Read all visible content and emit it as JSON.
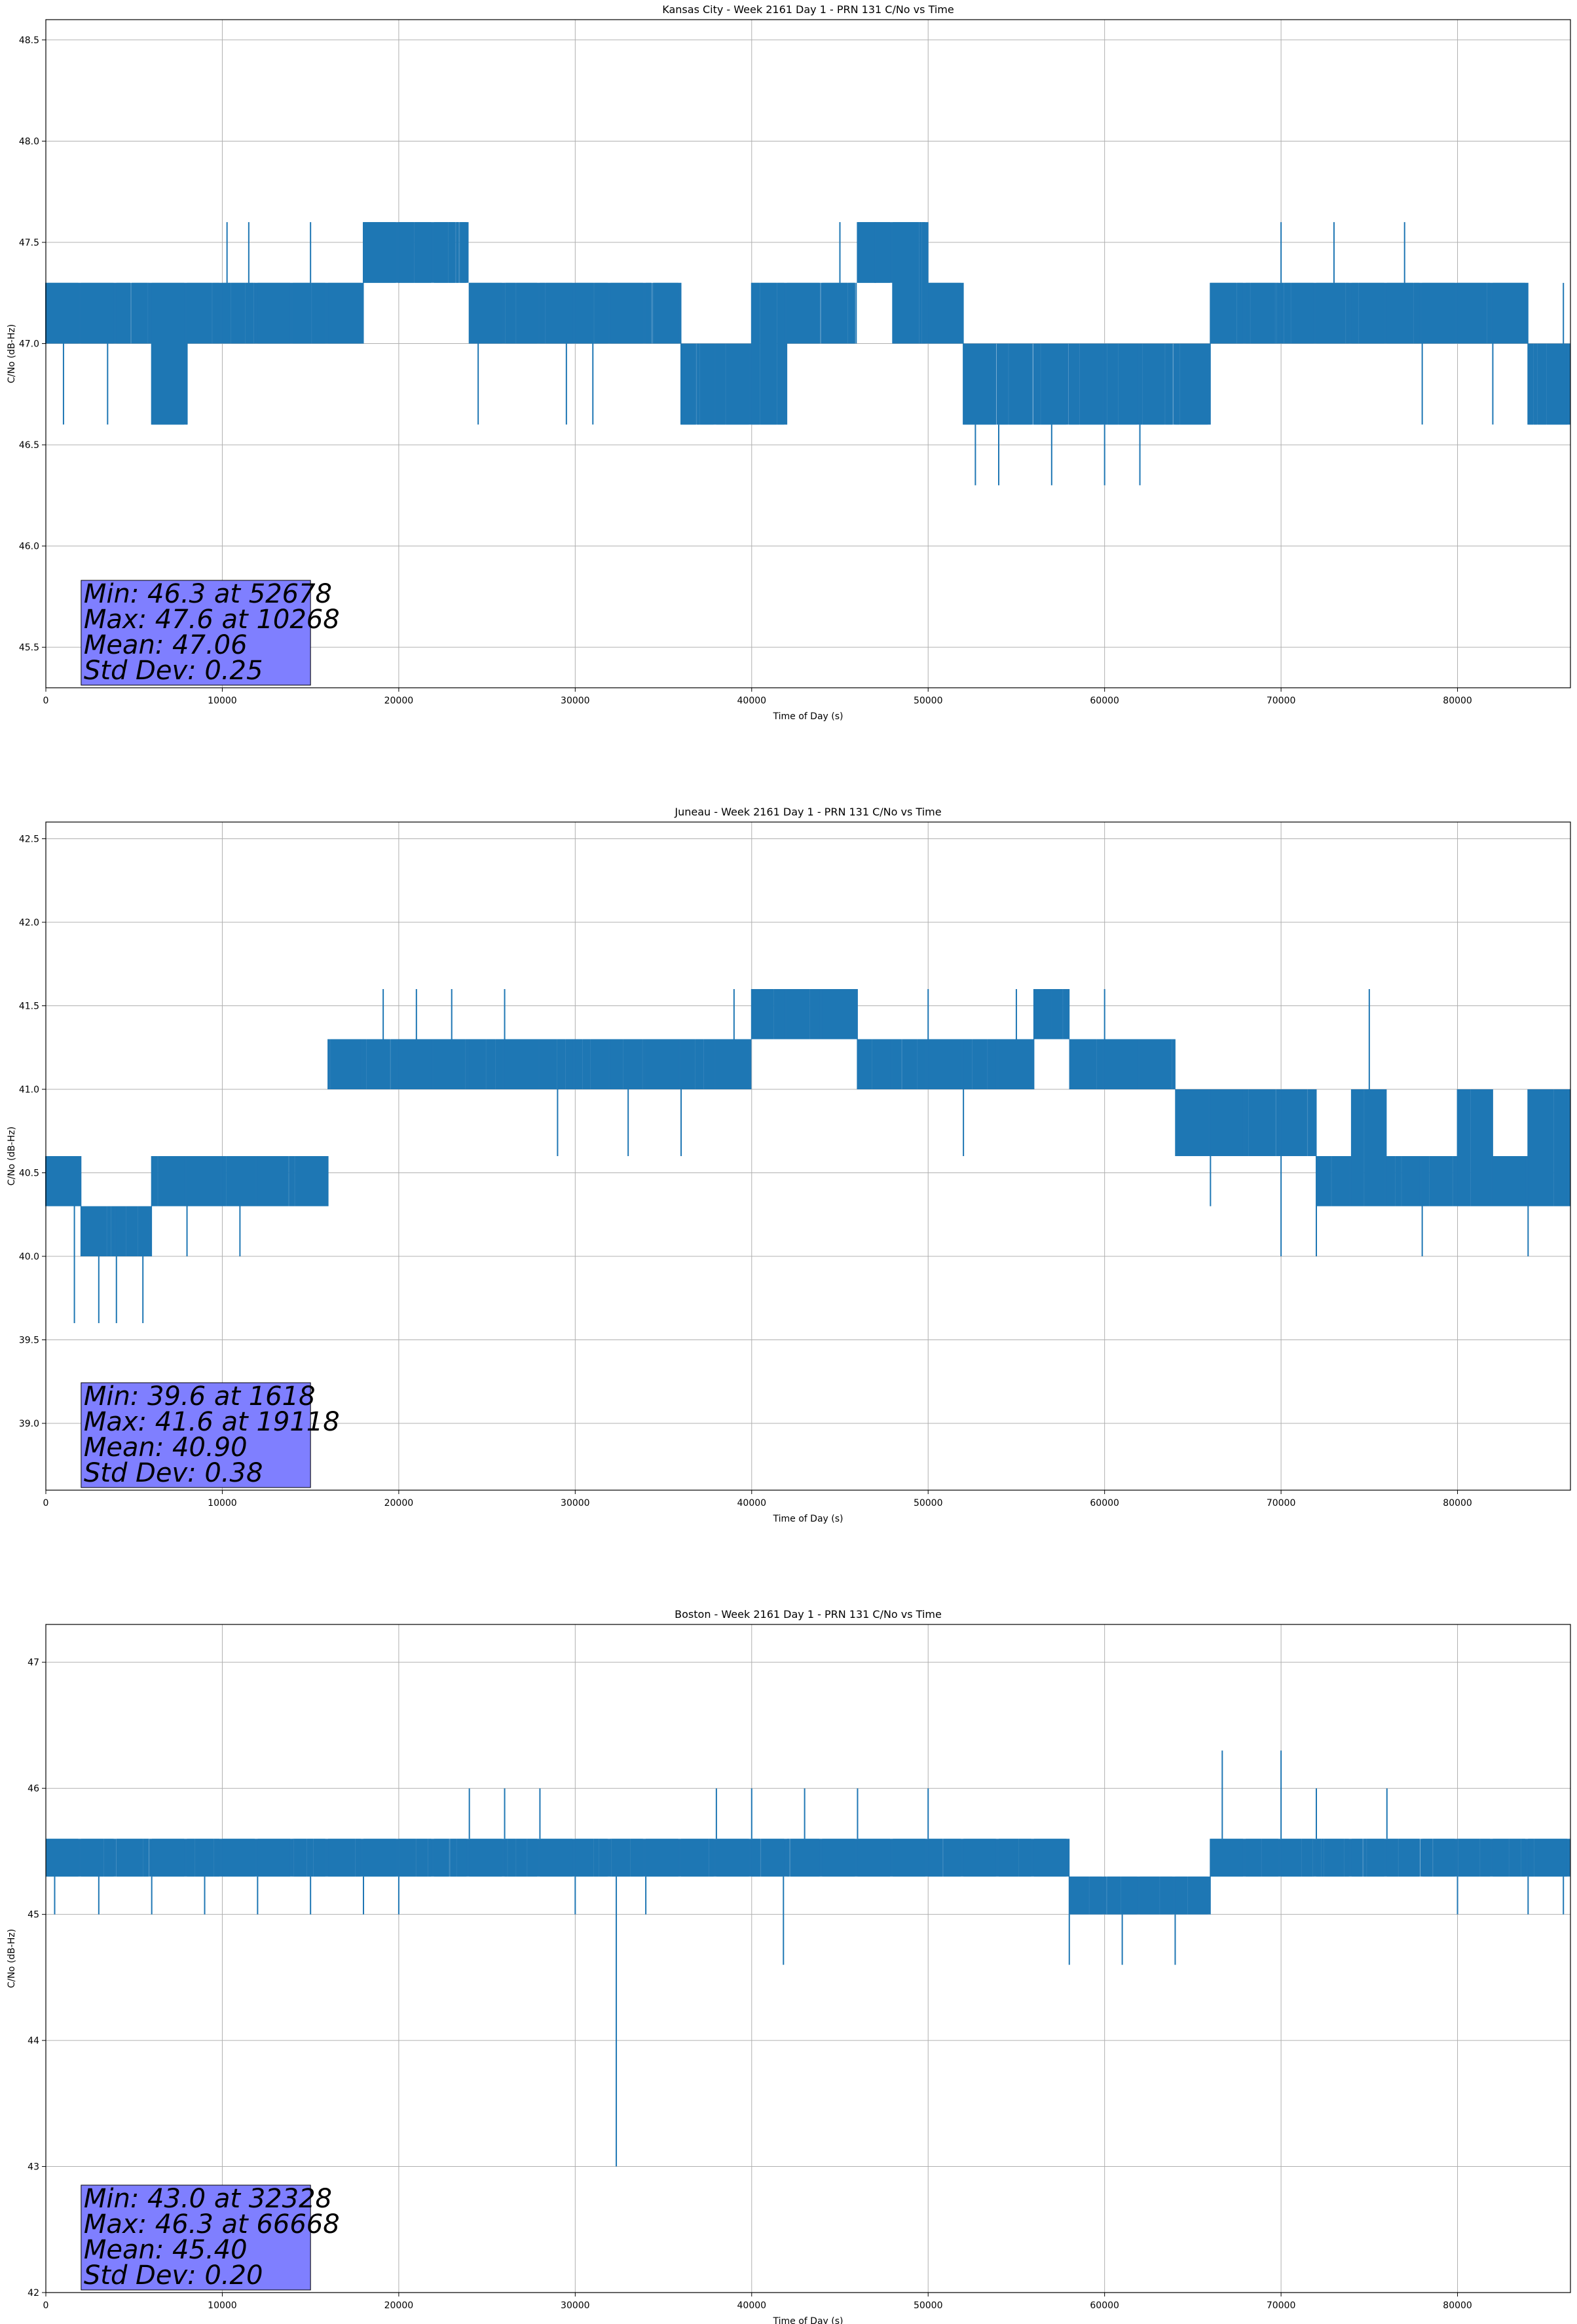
{
  "chart_data": [
    {
      "type": "line",
      "title": "Kansas City - Week 2161 Day 1 - PRN 131 C/No vs Time",
      "xlabel": "Time of Day (s)",
      "ylabel": "C/No (dB-Hz)",
      "xlim": [
        0,
        86400
      ],
      "ylim": [
        45.3,
        48.6
      ],
      "xticks": [
        0,
        10000,
        20000,
        30000,
        40000,
        50000,
        60000,
        70000,
        80000
      ],
      "xtick_labels": [
        "0",
        "10000",
        "20000",
        "30000",
        "40000",
        "50000",
        "60000",
        "70000",
        "80000"
      ],
      "yticks": [
        45.5,
        46.0,
        46.5,
        47.0,
        47.5,
        48.0,
        48.5
      ],
      "ytick_labels": [
        "45.5",
        "46.0",
        "46.5",
        "47.0",
        "47.5",
        "48.0",
        "48.5"
      ],
      "grid": true,
      "series_color": "#1f77b4",
      "stats": [
        "Min: 46.3 at 52678",
        "Max: 47.6 at 10268",
        "Mean: 47.06",
        "Std Dev: 0.25"
      ],
      "series": [
        {
          "x": [
            0,
            2000,
            4000,
            6000,
            8000,
            10000,
            12000,
            14000,
            16000,
            18000,
            20000,
            22000,
            24000,
            26000,
            28000,
            30000,
            32000,
            34000,
            36000,
            38000,
            40000,
            42000,
            44000,
            46000,
            48000,
            50000,
            52000,
            54000,
            56000,
            58000,
            60000,
            62000,
            64000,
            66000,
            68000,
            70000,
            72000,
            74000,
            76000,
            78000,
            80000,
            82000,
            84000,
            86400
          ],
          "base": [
            47.0,
            47.0,
            47.0,
            46.6,
            47.0,
            47.0,
            47.0,
            47.0,
            47.0,
            47.3,
            47.3,
            47.3,
            47.0,
            47.0,
            47.0,
            47.0,
            47.0,
            47.0,
            46.6,
            46.6,
            46.6,
            47.0,
            47.0,
            47.3,
            47.0,
            47.0,
            46.6,
            46.6,
            46.6,
            46.6,
            46.6,
            46.6,
            46.6,
            47.0,
            47.0,
            47.0,
            47.0,
            47.0,
            47.0,
            47.0,
            47.0,
            47.0,
            46.6,
            46.6
          ],
          "top": [
            47.3,
            47.3,
            47.3,
            47.3,
            47.3,
            47.3,
            47.3,
            47.3,
            47.3,
            47.6,
            47.6,
            47.6,
            47.3,
            47.3,
            47.3,
            47.3,
            47.3,
            47.3,
            47.0,
            47.0,
            47.3,
            47.3,
            47.3,
            47.6,
            47.6,
            47.3,
            47.0,
            47.0,
            47.0,
            47.0,
            47.0,
            47.0,
            47.0,
            47.3,
            47.3,
            47.3,
            47.3,
            47.3,
            47.3,
            47.3,
            47.3,
            47.3,
            47.0,
            47.0
          ],
          "spikes": [
            [
              1000,
              46.6
            ],
            [
              3500,
              46.6
            ],
            [
              6000,
              46.6
            ],
            [
              8000,
              46.6
            ],
            [
              10268,
              47.6
            ],
            [
              11500,
              47.6
            ],
            [
              15000,
              47.6
            ],
            [
              20000,
              47.6
            ],
            [
              24500,
              46.6
            ],
            [
              29500,
              46.6
            ],
            [
              31000,
              46.6
            ],
            [
              37000,
              46.6
            ],
            [
              45000,
              47.6
            ],
            [
              47000,
              47.6
            ],
            [
              52678,
              46.3
            ],
            [
              54000,
              46.3
            ],
            [
              57000,
              46.3
            ],
            [
              60000,
              46.3
            ],
            [
              62000,
              46.3
            ],
            [
              70000,
              47.6
            ],
            [
              73000,
              47.6
            ],
            [
              77000,
              47.6
            ],
            [
              78000,
              46.6
            ],
            [
              82000,
              46.6
            ],
            [
              86000,
              47.3
            ]
          ]
        }
      ]
    },
    {
      "type": "line",
      "title": "Juneau - Week 2161 Day 1 - PRN 131 C/No vs Time",
      "xlabel": "Time of Day (s)",
      "ylabel": "C/No (dB-Hz)",
      "xlim": [
        0,
        86400
      ],
      "ylim": [
        38.6,
        42.6
      ],
      "xticks": [
        0,
        10000,
        20000,
        30000,
        40000,
        50000,
        60000,
        70000,
        80000
      ],
      "xtick_labels": [
        "0",
        "10000",
        "20000",
        "30000",
        "40000",
        "50000",
        "60000",
        "70000",
        "80000"
      ],
      "yticks": [
        39.0,
        39.5,
        40.0,
        40.5,
        41.0,
        41.5,
        42.0,
        42.5
      ],
      "ytick_labels": [
        "39.0",
        "39.5",
        "40.0",
        "40.5",
        "41.0",
        "41.5",
        "42.0",
        "42.5"
      ],
      "grid": true,
      "series_color": "#1f77b4",
      "stats": [
        "Min: 39.6 at 1618",
        "Max: 41.6 at 19118",
        "Mean: 40.90",
        "Std Dev: 0.38"
      ],
      "series": [
        {
          "x": [
            0,
            2000,
            4000,
            6000,
            8000,
            10000,
            12000,
            14000,
            16000,
            18000,
            20000,
            22000,
            24000,
            26000,
            28000,
            30000,
            32000,
            34000,
            36000,
            38000,
            40000,
            42000,
            44000,
            46000,
            48000,
            50000,
            52000,
            54000,
            56000,
            58000,
            60000,
            62000,
            64000,
            66000,
            68000,
            70000,
            72000,
            74000,
            76000,
            78000,
            80000,
            82000,
            84000,
            86400
          ],
          "base": [
            40.3,
            40.0,
            40.0,
            40.3,
            40.3,
            40.3,
            40.3,
            40.3,
            41.0,
            41.0,
            41.0,
            41.0,
            41.0,
            41.0,
            41.0,
            41.0,
            41.0,
            41.0,
            41.0,
            41.0,
            41.3,
            41.3,
            41.3,
            41.0,
            41.0,
            41.0,
            41.0,
            41.0,
            41.3,
            41.0,
            41.0,
            41.0,
            40.6,
            40.6,
            40.6,
            40.6,
            40.3,
            40.3,
            40.3,
            40.3,
            40.3,
            40.3,
            40.3,
            40.3
          ],
          "top": [
            40.6,
            40.3,
            40.3,
            40.6,
            40.6,
            40.6,
            40.6,
            40.6,
            41.3,
            41.3,
            41.3,
            41.3,
            41.3,
            41.3,
            41.3,
            41.3,
            41.3,
            41.3,
            41.3,
            41.3,
            41.6,
            41.6,
            41.6,
            41.3,
            41.3,
            41.3,
            41.3,
            41.3,
            41.6,
            41.3,
            41.3,
            41.3,
            41.0,
            41.0,
            41.0,
            41.0,
            40.6,
            41.0,
            40.6,
            40.6,
            41.0,
            40.6,
            41.0,
            40.6
          ],
          "spikes": [
            [
              1618,
              39.6
            ],
            [
              3000,
              39.6
            ],
            [
              4000,
              39.6
            ],
            [
              5500,
              39.6
            ],
            [
              8000,
              40.0
            ],
            [
              11000,
              40.0
            ],
            [
              19118,
              41.6
            ],
            [
              21000,
              41.6
            ],
            [
              23000,
              41.6
            ],
            [
              26000,
              41.6
            ],
            [
              29000,
              40.6
            ],
            [
              33000,
              40.6
            ],
            [
              36000,
              40.6
            ],
            [
              39000,
              41.6
            ],
            [
              45000,
              41.6
            ],
            [
              50000,
              41.6
            ],
            [
              52000,
              40.6
            ],
            [
              55000,
              41.6
            ],
            [
              57000,
              41.6
            ],
            [
              60000,
              41.6
            ],
            [
              66000,
              40.3
            ],
            [
              70000,
              40.0
            ],
            [
              72000,
              40.0
            ],
            [
              75000,
              41.6
            ],
            [
              78000,
              40.0
            ],
            [
              84000,
              40.0
            ]
          ]
        }
      ]
    },
    {
      "type": "line",
      "title": "Boston - Week 2161 Day 1 - PRN 131 C/No vs Time",
      "xlabel": "Time of Day (s)",
      "ylabel": "C/No (dB-Hz)",
      "xlim": [
        0,
        86400
      ],
      "ylim": [
        42.0,
        47.3
      ],
      "xticks": [
        0,
        10000,
        20000,
        30000,
        40000,
        50000,
        60000,
        70000,
        80000
      ],
      "xtick_labels": [
        "0",
        "10000",
        "20000",
        "30000",
        "40000",
        "50000",
        "60000",
        "70000",
        "80000"
      ],
      "yticks": [
        42,
        43,
        44,
        45,
        46,
        47
      ],
      "ytick_labels": [
        "42",
        "43",
        "44",
        "45",
        "46",
        "47"
      ],
      "grid": true,
      "series_color": "#1f77b4",
      "stats": [
        "Min: 43.0 at 32328",
        "Max: 46.3 at 66668",
        "Mean: 45.40",
        "Std Dev: 0.20"
      ],
      "series": [
        {
          "x": [
            0,
            2000,
            4000,
            6000,
            8000,
            10000,
            12000,
            14000,
            16000,
            18000,
            20000,
            22000,
            24000,
            26000,
            28000,
            30000,
            32000,
            34000,
            36000,
            38000,
            40000,
            42000,
            44000,
            46000,
            48000,
            50000,
            52000,
            54000,
            56000,
            58000,
            60000,
            62000,
            64000,
            66000,
            68000,
            70000,
            72000,
            74000,
            76000,
            78000,
            80000,
            82000,
            84000,
            86400
          ],
          "base": [
            45.3,
            45.3,
            45.3,
            45.3,
            45.3,
            45.3,
            45.3,
            45.3,
            45.3,
            45.3,
            45.3,
            45.3,
            45.3,
            45.3,
            45.3,
            45.3,
            45.3,
            45.3,
            45.3,
            45.3,
            45.3,
            45.3,
            45.3,
            45.3,
            45.3,
            45.3,
            45.3,
            45.3,
            45.3,
            45.0,
            45.0,
            45.0,
            45.0,
            45.3,
            45.3,
            45.3,
            45.3,
            45.3,
            45.3,
            45.3,
            45.3,
            45.3,
            45.3,
            45.3
          ],
          "top": [
            45.6,
            45.6,
            45.6,
            45.6,
            45.6,
            45.6,
            45.6,
            45.6,
            45.6,
            45.6,
            45.6,
            45.6,
            45.6,
            45.6,
            45.6,
            45.6,
            45.6,
            45.6,
            45.6,
            45.6,
            45.6,
            45.6,
            45.6,
            45.6,
            45.6,
            45.6,
            45.6,
            45.6,
            45.6,
            45.3,
            45.3,
            45.3,
            45.3,
            45.6,
            45.6,
            45.6,
            45.6,
            45.6,
            45.6,
            45.6,
            45.6,
            45.6,
            45.6,
            45.6
          ],
          "spikes": [
            [
              500,
              45.0
            ],
            [
              3000,
              45.0
            ],
            [
              6000,
              45.0
            ],
            [
              9000,
              45.0
            ],
            [
              12000,
              45.0
            ],
            [
              15000,
              45.0
            ],
            [
              18000,
              45.0
            ],
            [
              20000,
              45.0
            ],
            [
              24000,
              46.0
            ],
            [
              26000,
              46.0
            ],
            [
              28000,
              46.0
            ],
            [
              30000,
              45.0
            ],
            [
              32328,
              43.0
            ],
            [
              34000,
              45.0
            ],
            [
              38000,
              46.0
            ],
            [
              40000,
              46.0
            ],
            [
              41800,
              44.6
            ],
            [
              43000,
              46.0
            ],
            [
              46000,
              46.0
            ],
            [
              50000,
              46.0
            ],
            [
              58000,
              44.6
            ],
            [
              61000,
              44.6
            ],
            [
              64000,
              44.6
            ],
            [
              66668,
              46.3
            ],
            [
              70000,
              46.3
            ],
            [
              72000,
              46.0
            ],
            [
              76000,
              46.0
            ],
            [
              80000,
              45.0
            ],
            [
              84000,
              45.0
            ],
            [
              86000,
              45.0
            ]
          ]
        }
      ]
    }
  ]
}
